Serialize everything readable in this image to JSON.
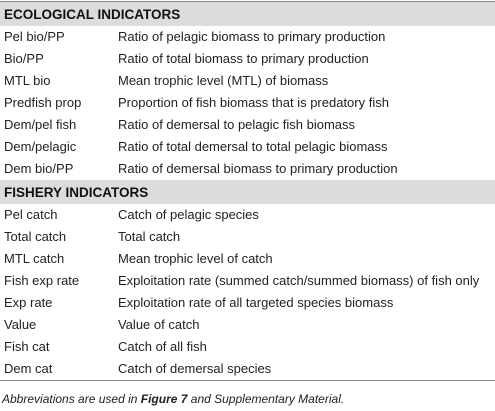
{
  "sections": [
    {
      "title": "ECOLOGICAL INDICATORS",
      "rows": [
        [
          "Pel bio/PP",
          "Ratio of pelagic biomass to primary production"
        ],
        [
          "Bio/PP",
          "Ratio of total biomass to primary production"
        ],
        [
          "MTL bio",
          "Mean trophic level (MTL) of biomass"
        ],
        [
          "Predfish prop",
          "Proportion of fish biomass that is predatory fish"
        ],
        [
          "Dem/pel fish",
          "Ratio of demersal to pelagic fish biomass"
        ],
        [
          "Dem/pelagic",
          "Ratio of total demersal to total pelagic biomass"
        ],
        [
          "Dem bio/PP",
          "Ratio of demersal biomass to primary production"
        ]
      ]
    },
    {
      "title": "FISHERY INDICATORS",
      "rows": [
        [
          "Pel catch",
          "Catch of pelagic species"
        ],
        [
          "Total catch",
          "Total catch"
        ],
        [
          "MTL catch",
          "Mean trophic level of catch"
        ],
        [
          "Fish exp rate",
          "Exploitation rate (summed catch/summed biomass) of fish only"
        ],
        [
          "Exp rate",
          "Exploitation rate of all targeted species biomass"
        ],
        [
          "Value",
          "Value of catch"
        ],
        [
          "Fish cat",
          "Catch of all fish"
        ],
        [
          "Dem cat",
          "Catch of demersal species"
        ]
      ]
    }
  ],
  "footnote": {
    "before": "Abbreviations are used in ",
    "figure": "Figure 7",
    "after": " and Supplementary Material."
  }
}
